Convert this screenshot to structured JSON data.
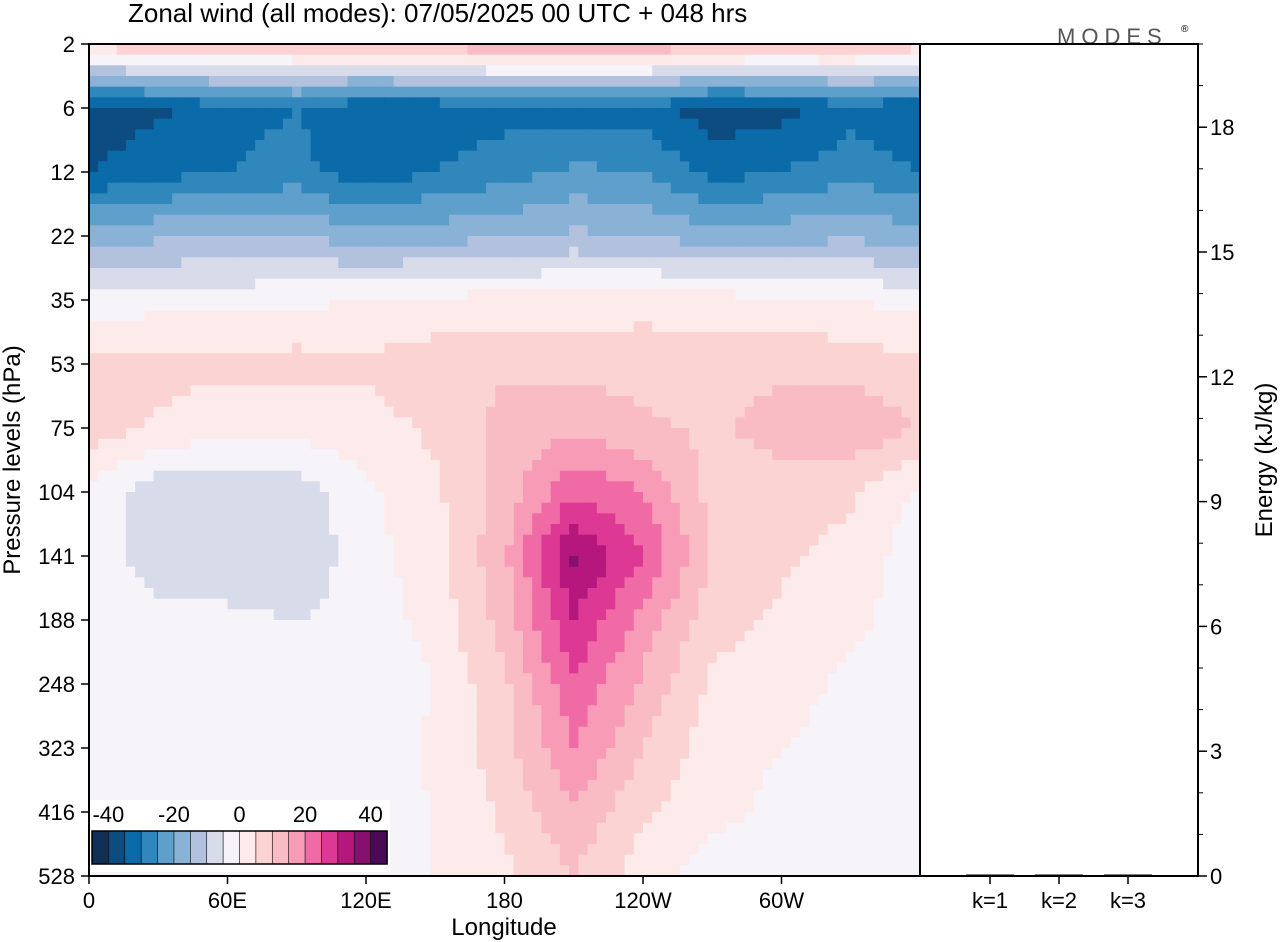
{
  "title": "Zonal wind (all modes):  07/05/2025  00 UTC  + 048 hrs",
  "brand": "MODES",
  "brand_mark": "®",
  "colors": {
    "palette": [
      "#0f2f57",
      "#0c4c80",
      "#0b6ba8",
      "#2f87bc",
      "#5e9fcb",
      "#8ab2d6",
      "#b2c2de",
      "#d8dbea",
      "#f6f4f8",
      "#fdeaea",
      "#fcd3d3",
      "#fabcc4",
      "#f79bb7",
      "#f06aa5",
      "#dd3994",
      "#b5177d",
      "#86106f",
      "#4b0a56"
    ],
    "frame": "#000000"
  },
  "chart_data": [
    {
      "type": "heatmap",
      "title": "Zonal wind (all modes):  07/05/2025  00 UTC  + 048 hrs",
      "xlabel": "Longitude",
      "ylabel": "Pressure levels (hPa)",
      "x_ticks": [
        "0",
        "60E",
        "120E",
        "180",
        "120W",
        "60W"
      ],
      "x_tick_values": [
        0,
        60,
        120,
        180,
        240,
        300
      ],
      "xlim": [
        0,
        360
      ],
      "y_ticks": [
        "2",
        "6",
        "12",
        "22",
        "35",
        "53",
        "75",
        "104",
        "141",
        "188",
        "248",
        "323",
        "416",
        "528"
      ],
      "y_axis_inverted": true,
      "colorbar": {
        "tick_labels": [
          "-40",
          "-20",
          "0",
          "20",
          "40"
        ],
        "levels": [
          -45,
          -40,
          -35,
          -30,
          -25,
          -20,
          -15,
          -10,
          -5,
          0,
          5,
          10,
          15,
          20,
          25,
          30,
          35,
          40,
          45
        ],
        "placement": "lower-left inset"
      },
      "approx_values": {
        "levels": [
          "2",
          "6",
          "12",
          "22",
          "35",
          "53",
          "75",
          "104",
          "141",
          "188",
          "248",
          "323",
          "416",
          "528"
        ],
        "longitude_points": [
          0,
          30,
          60,
          90,
          120,
          150,
          180,
          210,
          240,
          270,
          300,
          330,
          360
        ],
        "u": [
          [
            8,
            10,
            10,
            10,
            12,
            13,
            15,
            17,
            15,
            13,
            12,
            11,
            8
          ],
          [
            -38,
            -36,
            -32,
            -30,
            -35,
            -34,
            -32,
            -33,
            -32,
            -38,
            -37,
            -32,
            -35
          ],
          [
            -35,
            -32,
            -30,
            -28,
            -34,
            -30,
            -27,
            -24,
            -25,
            -32,
            -30,
            -27,
            -30
          ],
          [
            -18,
            -16,
            -15,
            -15,
            -18,
            -17,
            -16,
            -14,
            -15,
            -18,
            -17,
            -16,
            -18
          ],
          [
            -3,
            -2,
            -2,
            -1,
            0,
            1,
            2,
            2,
            3,
            2,
            1,
            0,
            -2
          ],
          [
            6,
            7,
            6,
            7,
            6,
            8,
            9,
            8,
            8,
            8,
            9,
            8,
            6
          ],
          [
            8,
            4,
            2,
            2,
            3,
            6,
            12,
            14,
            11,
            9,
            12,
            14,
            10
          ],
          [
            -2,
            -8,
            -10,
            -8,
            -1,
            4,
            12,
            24,
            20,
            8,
            8,
            6,
            -1
          ],
          [
            -3,
            -7,
            -8,
            -9,
            -2,
            3,
            14,
            36,
            25,
            10,
            6,
            3,
            -3
          ],
          [
            -2,
            -4,
            -4,
            -5,
            -3,
            2,
            12,
            30,
            18,
            7,
            4,
            1,
            -2
          ],
          [
            -3,
            -3,
            -2,
            -3,
            -4,
            0,
            9,
            24,
            14,
            4,
            2,
            -1,
            -3
          ],
          [
            -2,
            -3,
            -2,
            -3,
            -3,
            1,
            8,
            20,
            10,
            2,
            0,
            -2,
            -4
          ],
          [
            -3,
            -2,
            -3,
            -2,
            -2,
            0,
            6,
            14,
            6,
            1,
            -1,
            -3,
            -5
          ],
          [
            -4,
            -3,
            -2,
            -3,
            -3,
            0,
            4,
            10,
            2,
            -2,
            -2,
            -4,
            -5
          ]
        ]
      }
    },
    {
      "type": "bar",
      "categories": [
        "k=1",
        "k=2",
        "k=3"
      ],
      "values": [
        0.03,
        0.01,
        0.005
      ],
      "ylabel": "Energy (kJ/kg)",
      "y_ticks": [
        "0",
        "3",
        "6",
        "9",
        "12",
        "15",
        "18"
      ],
      "ylim": [
        0,
        20
      ],
      "y_axis_side": "right"
    }
  ]
}
